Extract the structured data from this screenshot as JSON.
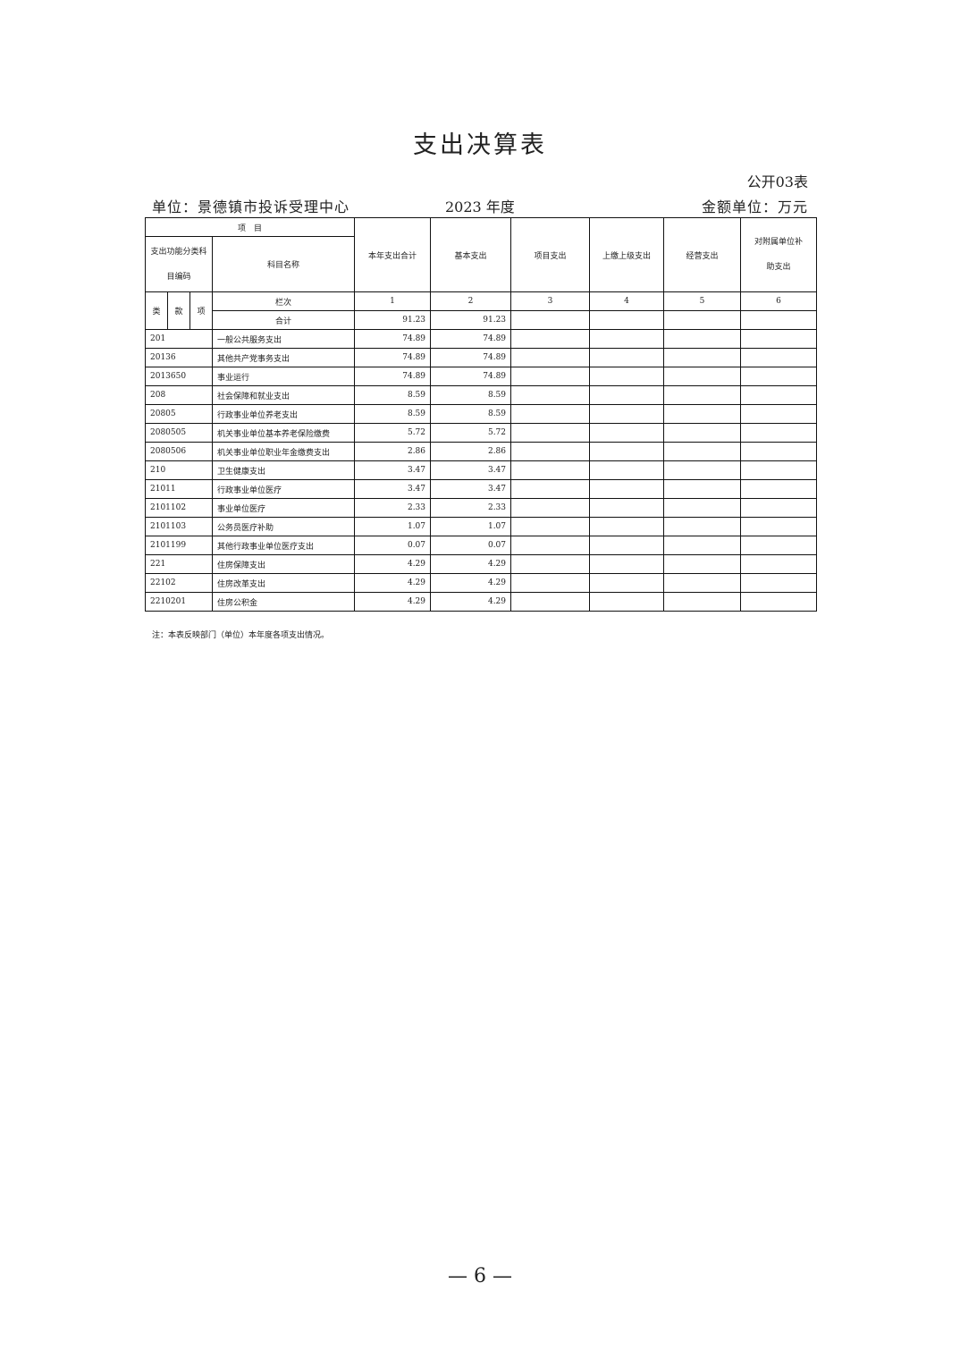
{
  "title": "支出决算表",
  "form_no": "公开03表",
  "unit": "单位：景德镇市投诉受理中心",
  "year": "2023 年度",
  "money_unit": "金额单位：万元",
  "header": {
    "item": "项　目",
    "code_group": "支出功能分类科目编码",
    "name": "科目名称",
    "lei": "类",
    "kuan": "款",
    "xiang": "项",
    "columns": [
      "本年支出合计",
      "基本支出",
      "项目支出",
      "上缴上级支出",
      "经营支出",
      "对附属单位补助支出"
    ],
    "col_index_label": "栏次",
    "col_indices": [
      "1",
      "2",
      "3",
      "4",
      "5",
      "6"
    ]
  },
  "total": {
    "label": "合计",
    "total": "91.23",
    "basic": "91.23"
  },
  "rows": [
    {
      "code": "201",
      "name": "一般公共服务支出",
      "total": "74.89",
      "basic": "74.89"
    },
    {
      "code": "20136",
      "name": "其他共产党事务支出",
      "total": "74.89",
      "basic": "74.89"
    },
    {
      "code": "2013650",
      "name": "事业运行",
      "total": "74.89",
      "basic": "74.89"
    },
    {
      "code": "208",
      "name": "社会保障和就业支出",
      "total": "8.59",
      "basic": "8.59"
    },
    {
      "code": "20805",
      "name": "行政事业单位养老支出",
      "total": "8.59",
      "basic": "8.59"
    },
    {
      "code": "2080505",
      "name": "机关事业单位基本养老保险缴费",
      "total": "5.72",
      "basic": "5.72"
    },
    {
      "code": "2080506",
      "name": "机关事业单位职业年金缴费支出",
      "total": "2.86",
      "basic": "2.86"
    },
    {
      "code": "210",
      "name": "卫生健康支出",
      "total": "3.47",
      "basic": "3.47"
    },
    {
      "code": "21011",
      "name": "行政事业单位医疗",
      "total": "3.47",
      "basic": "3.47"
    },
    {
      "code": "2101102",
      "name": "事业单位医疗",
      "total": "2.33",
      "basic": "2.33"
    },
    {
      "code": "2101103",
      "name": "公务员医疗补助",
      "total": "1.07",
      "basic": "1.07"
    },
    {
      "code": "2101199",
      "name": "其他行政事业单位医疗支出",
      "total": "0.07",
      "basic": "0.07"
    },
    {
      "code": "221",
      "name": "住房保障支出",
      "total": "4.29",
      "basic": "4.29"
    },
    {
      "code": "22102",
      "name": "住房改革支出",
      "total": "4.29",
      "basic": "4.29"
    },
    {
      "code": "2210201",
      "name": "住房公积金",
      "total": "4.29",
      "basic": "4.29"
    }
  ],
  "note": "注：本表反映部门（单位）本年度各项支出情况。",
  "page_number": "— 6 —"
}
